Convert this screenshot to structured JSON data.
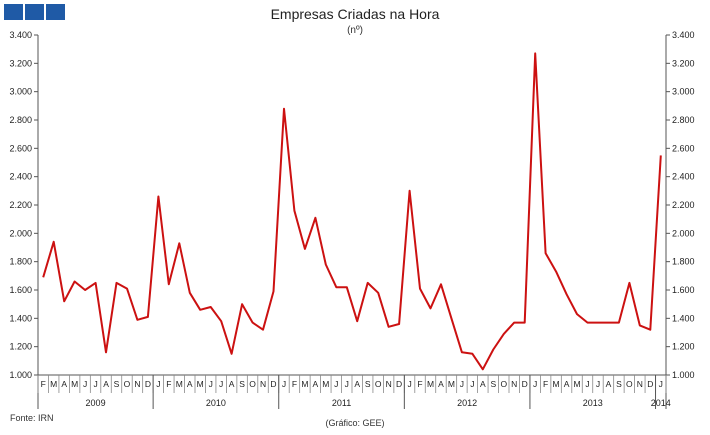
{
  "header": {
    "title": "Empresas Criadas na Hora",
    "subtitle": "(nº)",
    "logo_color": "#1f5aa6"
  },
  "footer": {
    "source": "Fonte: IRN",
    "credit": "(Gráfico: GEE)"
  },
  "chart_data": {
    "type": "line",
    "title": "Empresas Criadas na Hora",
    "subtitle": "(nº)",
    "ylim": [
      1000,
      3400
    ],
    "yticks": [
      1000,
      1200,
      1400,
      1600,
      1800,
      2000,
      2200,
      2400,
      2600,
      2800,
      3000,
      3200,
      3400
    ],
    "ytick_labels": [
      "1.000",
      "1.200",
      "1.400",
      "1.600",
      "1.800",
      "2.000",
      "2.200",
      "2.400",
      "2.600",
      "2.800",
      "3.000",
      "3.200",
      "3.400"
    ],
    "month_labels": [
      "F",
      "M",
      "A",
      "M",
      "J",
      "J",
      "A",
      "S",
      "O",
      "N",
      "D",
      "J",
      "F",
      "M",
      "A",
      "M",
      "J",
      "J",
      "A",
      "S",
      "O",
      "N",
      "D",
      "J",
      "F",
      "M",
      "A",
      "M",
      "J",
      "J",
      "A",
      "S",
      "O",
      "N",
      "D",
      "J",
      "F",
      "M",
      "A",
      "M",
      "J",
      "J",
      "A",
      "S",
      "O",
      "N",
      "D",
      "J",
      "F",
      "M",
      "A",
      "M",
      "J",
      "J",
      "A",
      "S",
      "O",
      "N",
      "D",
      "J"
    ],
    "year_labels": [
      "2009",
      "2010",
      "2011",
      "2012",
      "2013",
      "2014"
    ],
    "series_color": "#cc1111",
    "grid": false,
    "series": [
      {
        "values": [
          1690,
          1940,
          1520,
          1660,
          1600,
          1650,
          1160,
          1650,
          1610,
          1390,
          1410,
          2260,
          1640,
          1930,
          1580,
          1460,
          1480,
          1380,
          1150,
          1500,
          1370,
          1320,
          1590,
          2880,
          2160,
          1890,
          2110,
          1780,
          1620,
          1620,
          1380,
          1650,
          1580,
          1340,
          1360,
          2300,
          1610,
          1470,
          1640,
          1400,
          1160,
          1150,
          1040,
          1180,
          1290,
          1370,
          1370,
          3270,
          1860,
          1730,
          1570,
          1430,
          1370,
          1370,
          1370,
          1370,
          1650,
          1350,
          1320,
          2550
        ]
      }
    ]
  }
}
